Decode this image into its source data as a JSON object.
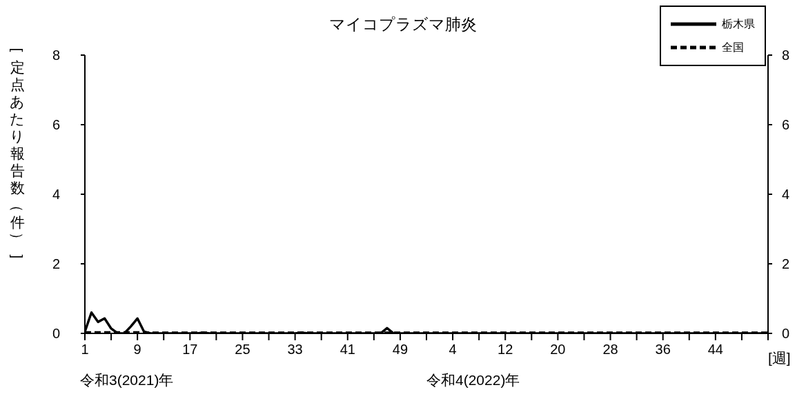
{
  "chart_data": {
    "type": "line",
    "title": "マイコプラズマ肺炎",
    "ylabel": "[定点あたり報告数（件）]",
    "xlabel": "[週]",
    "annotations": [
      "令和3(2021)年",
      "令和4(2022)年"
    ],
    "categories": [
      "1",
      null,
      null,
      null,
      null,
      null,
      null,
      null,
      "9",
      null,
      null,
      null,
      null,
      null,
      null,
      null,
      "17",
      null,
      null,
      null,
      null,
      null,
      null,
      null,
      "25",
      null,
      null,
      null,
      null,
      null,
      null,
      null,
      "33",
      null,
      null,
      null,
      null,
      null,
      null,
      null,
      "41",
      null,
      null,
      null,
      null,
      null,
      null,
      null,
      "49",
      null,
      null,
      null,
      null,
      null,
      null,
      null,
      "4",
      null,
      null,
      null,
      null,
      null,
      null,
      null,
      "12",
      null,
      null,
      null,
      null,
      null,
      null,
      null,
      "20",
      null,
      null,
      null,
      null,
      null,
      null,
      null,
      "28",
      null,
      null,
      null,
      null,
      null,
      null,
      null,
      "36",
      null,
      null,
      null,
      null,
      null,
      null,
      null,
      "44",
      null,
      null,
      null,
      null,
      null,
      null,
      null,
      null
    ],
    "series": [
      {
        "name": "栃木県",
        "color": "#000000",
        "line_style": "solid",
        "values": [
          0.05,
          0.6,
          0.33,
          0.43,
          0.14,
          0,
          0,
          0.2,
          0.43,
          0.05,
          0,
          0,
          0,
          0,
          0,
          0,
          0,
          0,
          0.02,
          0,
          0,
          0,
          0,
          0,
          0,
          0,
          0,
          0,
          0,
          0,
          0,
          0,
          0,
          0.02,
          0,
          0,
          0,
          0,
          0,
          0,
          0,
          0,
          0,
          0,
          0,
          0,
          0.15,
          0,
          0,
          0,
          0,
          0,
          0,
          0,
          0,
          0,
          0,
          0,
          0,
          0,
          0,
          0,
          0,
          0,
          0,
          0,
          0,
          0,
          0,
          0,
          0,
          0,
          0,
          0,
          0,
          0,
          0,
          0,
          0,
          0,
          0,
          0,
          0,
          0,
          0,
          0,
          0,
          0,
          0,
          0,
          0,
          0,
          0,
          0,
          0,
          0,
          0,
          0,
          0,
          0,
          0,
          0,
          0,
          0,
          0
        ]
      },
      {
        "name": "全国",
        "color": "#000000",
        "line_style": "dashed",
        "values": [
          0.03,
          0.03,
          0.03,
          0.03,
          0.03,
          0.03,
          0.03,
          0.03,
          0.03,
          0.03,
          0.02,
          0.02,
          0.02,
          0.02,
          0.02,
          0.02,
          0.02,
          0.02,
          0.02,
          0.02,
          0.02,
          0.02,
          0.02,
          0.02,
          0.02,
          0.02,
          0.02,
          0.02,
          0.02,
          0.02,
          0.02,
          0.02,
          0.02,
          0.02,
          0.02,
          0.02,
          0.02,
          0.02,
          0.02,
          0.02,
          0.02,
          0.02,
          0.02,
          0.02,
          0.02,
          0.02,
          0.02,
          0.02,
          0.02,
          0.02,
          0.02,
          0.02,
          0.02,
          0.02,
          0.02,
          0.02,
          0.02,
          0.02,
          0.02,
          0.02,
          0.02,
          0.02,
          0.02,
          0.02,
          0.02,
          0.02,
          0.02,
          0.02,
          0.02,
          0.02,
          0.02,
          0.02,
          0.02,
          0.02,
          0.02,
          0.02,
          0.02,
          0.02,
          0.02,
          0.02,
          0.02,
          0.02,
          0.02,
          0.02,
          0.02,
          0.02,
          0.02,
          0.02,
          0.02,
          0.02,
          0.02,
          0.02,
          0.02,
          0.02,
          0.02,
          0.02,
          0.02,
          0.02,
          0.02,
          0.02,
          0.02,
          0.02,
          0.02,
          0.02,
          0.02
        ]
      }
    ],
    "ylim": [
      0,
      8
    ],
    "yticks": [
      0,
      2,
      4,
      6,
      8
    ],
    "y2lim": [
      0,
      8
    ],
    "y2ticks": [
      0,
      2,
      4,
      6,
      8
    ],
    "grid": false,
    "legend": "top right",
    "marker": "none"
  }
}
